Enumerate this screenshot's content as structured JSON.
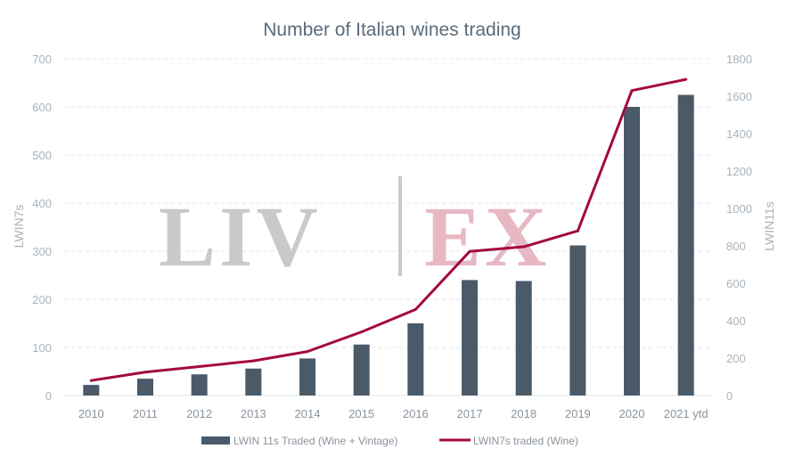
{
  "watermark": {
    "left": "LIV",
    "right": "EX"
  },
  "chart_data": {
    "type": "bar+line",
    "title": "Number of Italian wines trading",
    "categories": [
      "2010",
      "2011",
      "2012",
      "2013",
      "2014",
      "2015",
      "2016",
      "2017",
      "2018",
      "2019",
      "2020",
      "2021 ytd"
    ],
    "ylabel_left": "LWIN7s",
    "ylabel_right": "LWIN11s",
    "ylim_left": [
      0,
      700
    ],
    "ylim_right": [
      0,
      1800
    ],
    "yticks_left": [
      0,
      100,
      200,
      300,
      400,
      500,
      600,
      700
    ],
    "yticks_right": [
      0,
      200,
      400,
      600,
      800,
      1000,
      1200,
      1400,
      1600,
      1800
    ],
    "grid": true,
    "legend_position": "bottom",
    "series": [
      {
        "name": "LWIN 11s Traded (Wine + Vintage)",
        "type": "bar",
        "axis": "left",
        "color": "#4a5a68",
        "values": [
          22,
          35,
          44,
          56,
          77,
          106,
          150,
          240,
          238,
          312,
          600,
          625
        ]
      },
      {
        "name": "LWIN7s traded (Wine)",
        "type": "line",
        "axis": "right",
        "color": "#a30a3f",
        "values": [
          80,
          125,
          155,
          185,
          235,
          340,
          460,
          770,
          795,
          880,
          1630,
          1690
        ]
      }
    ]
  }
}
